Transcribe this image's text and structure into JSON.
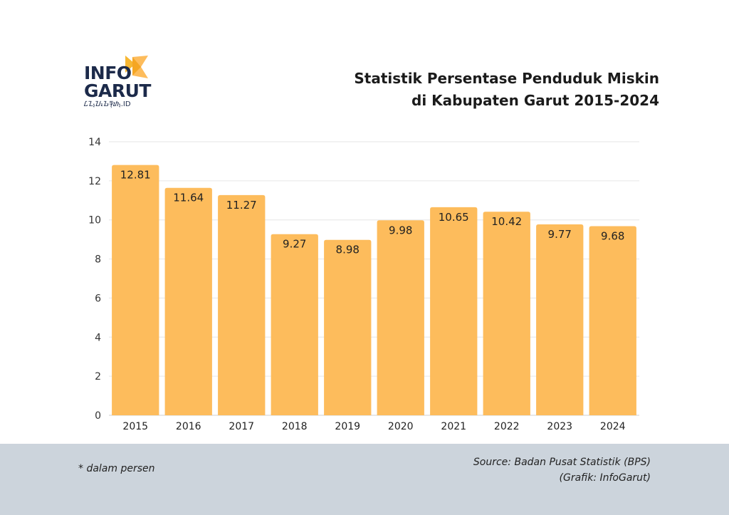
{
  "logo": {
    "line1": "INFO",
    "line2": "GARUT",
    "line3": "ᮄᮔ᮪ᮖᮧᮌᮛᮥᮒ᮪.ID"
  },
  "title": {
    "line1": "Statistik Persentase Penduduk Miskin",
    "line2": "di Kabupaten Garut 2015-2024"
  },
  "footer": {
    "note": "* dalam persen",
    "source": "Source: Badan Pusat Statistik (BPS)",
    "credit": "(Grafik: InfoGarut)"
  },
  "colors": {
    "bar": "#fdbc5c",
    "grid": "#e6e6e6",
    "footer": "#ccd4dc",
    "text": "#1b1b1b"
  },
  "chart_data": {
    "type": "bar",
    "title": "Statistik Persentase Penduduk Miskin di Kabupaten Garut 2015-2024",
    "xlabel": "",
    "ylabel": "",
    "categories": [
      "2015",
      "2016",
      "2017",
      "2018",
      "2019",
      "2020",
      "2021",
      "2022",
      "2023",
      "2024"
    ],
    "values": [
      12.81,
      11.64,
      11.27,
      9.27,
      8.98,
      9.98,
      10.65,
      10.42,
      9.77,
      9.68
    ],
    "value_labels": [
      "12.81",
      "11.64",
      "11.27",
      "9.27",
      "8.98",
      "9.98",
      "10.65",
      "10.42",
      "9.77",
      "9.68"
    ],
    "ylim": [
      0,
      14
    ],
    "yticks": [
      "0",
      "2",
      "4",
      "6",
      "8",
      "10",
      "12",
      "14"
    ],
    "grid": true,
    "legend": "none"
  }
}
